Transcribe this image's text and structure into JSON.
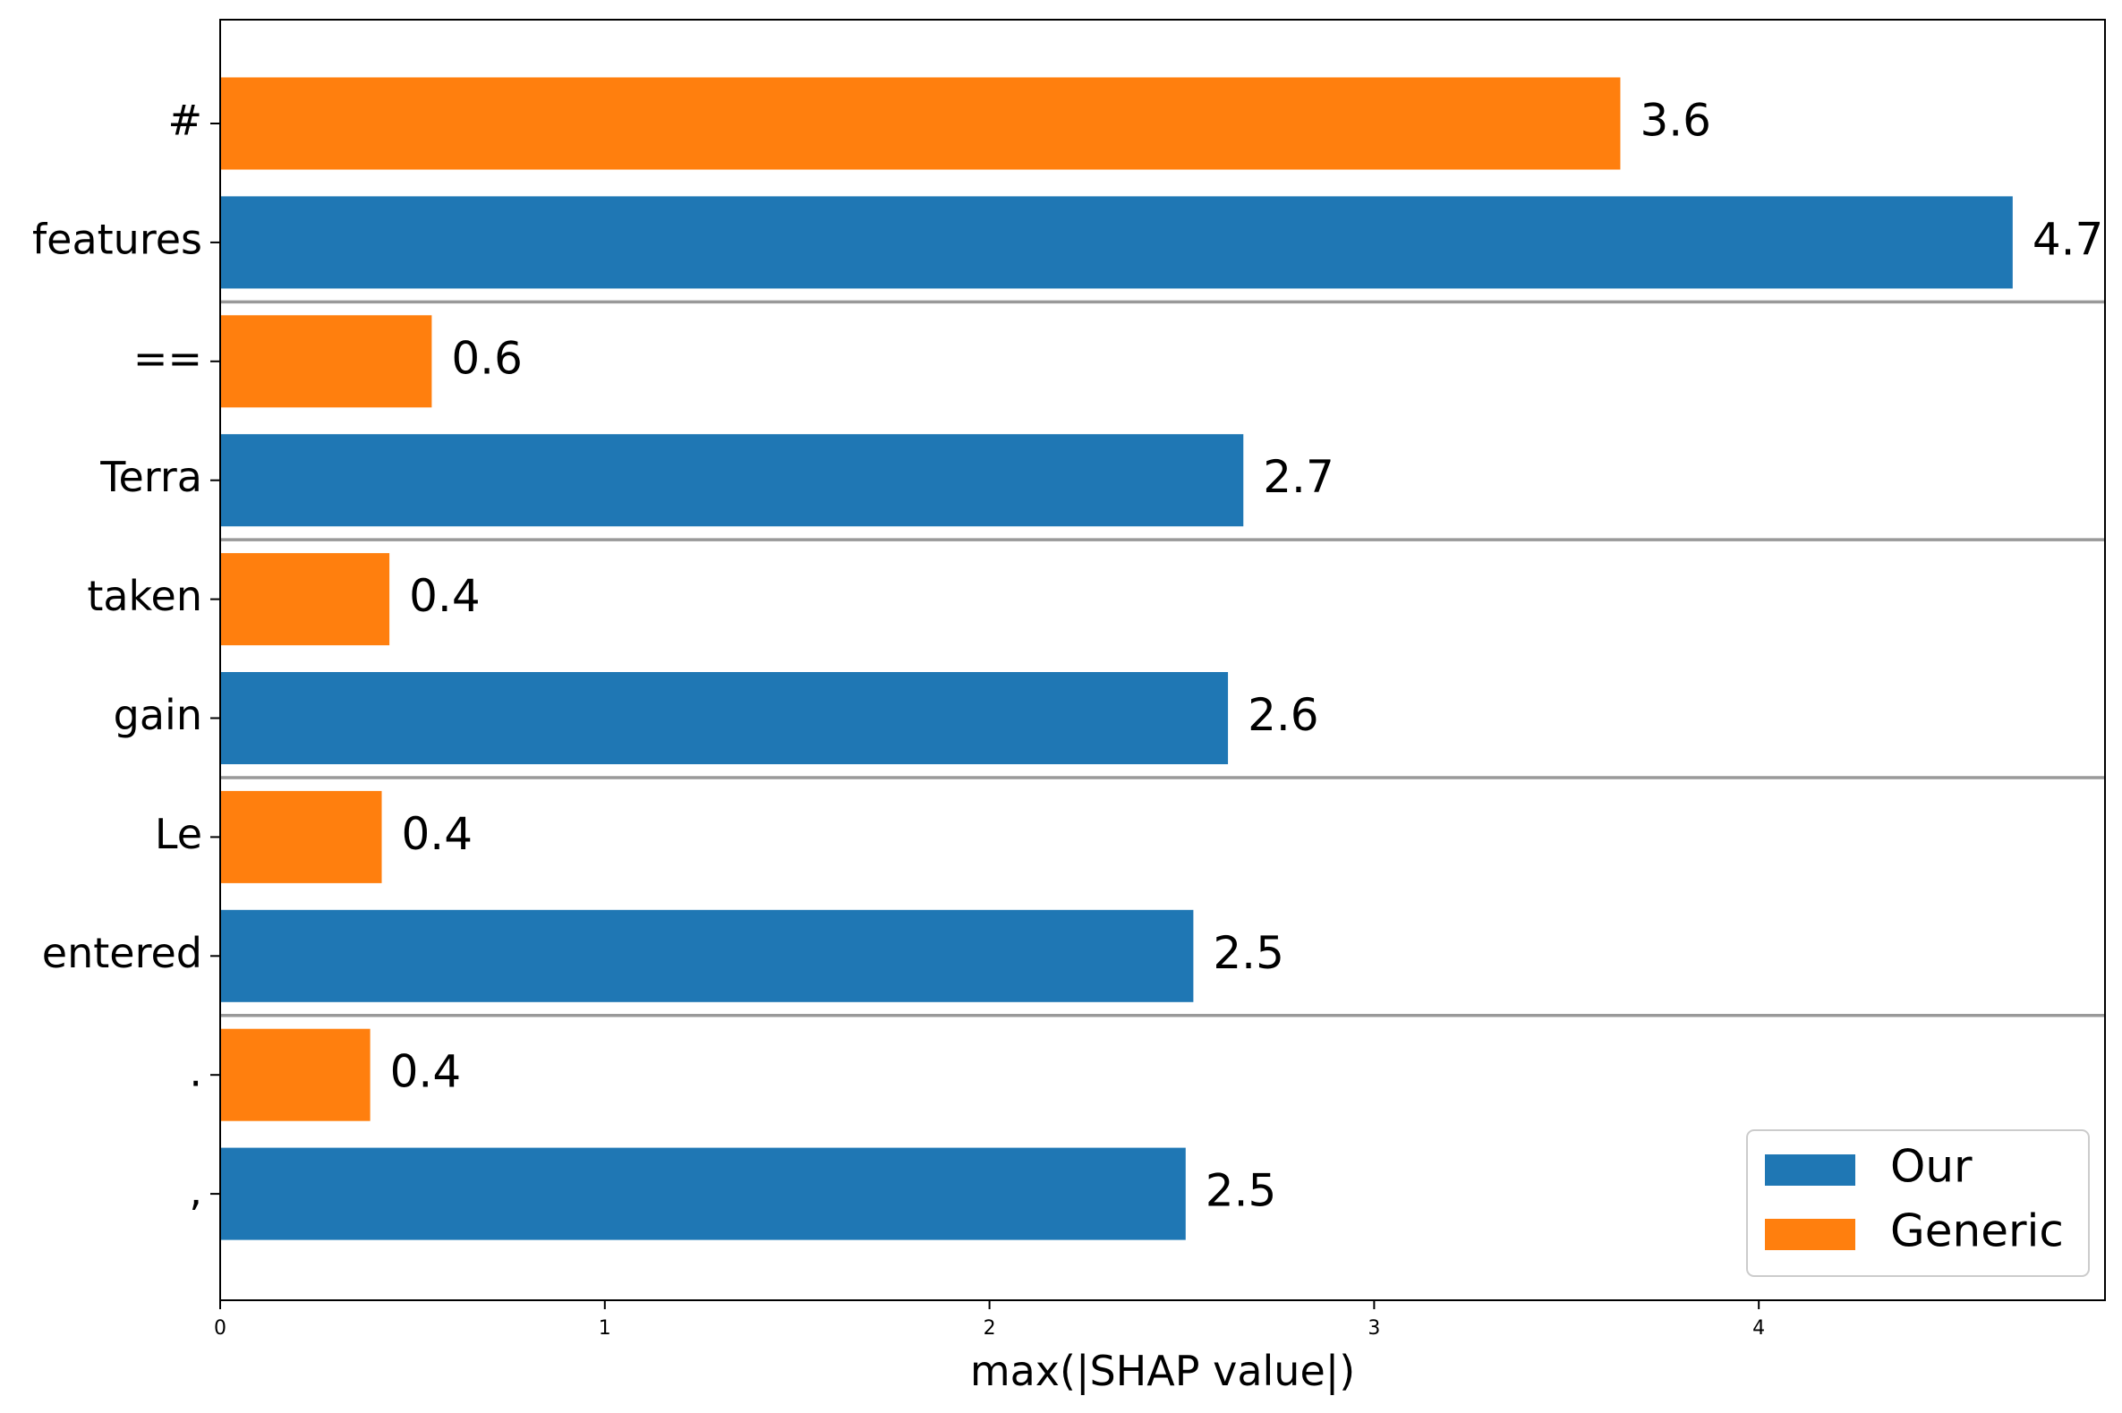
{
  "chart_data": {
    "type": "bar",
    "orientation": "horizontal",
    "xlabel": "max(|SHAP value|)",
    "ylabel": "",
    "xlim": [
      0,
      4.9
    ],
    "xticks": [
      0,
      1,
      2,
      3,
      4
    ],
    "grid": false,
    "legend_position": "bottom-right",
    "legend": [
      {
        "name": "Our",
        "color": "#1f77b4"
      },
      {
        "name": "Generic",
        "color": "#ff7f0e"
      }
    ],
    "bars": [
      {
        "label": "#",
        "series": "Generic",
        "value": 3.64,
        "value_label": "3.6"
      },
      {
        "label": "features",
        "series": "Our",
        "value": 4.66,
        "value_label": "4.7"
      },
      {
        "label": "==",
        "series": "Generic",
        "value": 0.55,
        "value_label": "0.6"
      },
      {
        "label": "Terra",
        "series": "Our",
        "value": 2.66,
        "value_label": "2.7"
      },
      {
        "label": "taken",
        "series": "Generic",
        "value": 0.44,
        "value_label": "0.4"
      },
      {
        "label": "gain",
        "series": "Our",
        "value": 2.62,
        "value_label": "2.6"
      },
      {
        "label": "Le",
        "series": "Generic",
        "value": 0.42,
        "value_label": "0.4"
      },
      {
        "label": "entered",
        "series": "Our",
        "value": 2.53,
        "value_label": "2.5"
      },
      {
        "label": ".",
        "series": "Generic",
        "value": 0.39,
        "value_label": "0.4"
      },
      {
        "label": ",",
        "series": "Our",
        "value": 2.51,
        "value_label": "2.5"
      }
    ],
    "group_separators_after": [
      1,
      3,
      5,
      7
    ]
  }
}
